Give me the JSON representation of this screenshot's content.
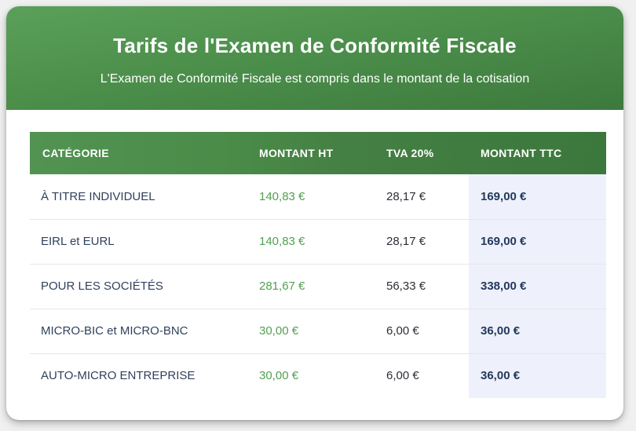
{
  "header": {
    "title": "Tarifs de l'Examen de Conformité Fiscale",
    "subtitle": "L'Examen de Conformité Fiscale est compris dans le montant de la cotisation"
  },
  "table": {
    "headers": [
      "CATÉGORIE",
      "MONTANT HT",
      "TVA 20%",
      "MONTANT TTC"
    ],
    "rows": [
      {
        "category": "À TITRE INDIVIDUEL",
        "montant_ht": "140,83 €",
        "tva": "28,17 €",
        "montant_ttc": "169,00 €"
      },
      {
        "category": "EIRL et EURL",
        "montant_ht": "140,83 €",
        "tva": "28,17 €",
        "montant_ttc": "169,00 €"
      },
      {
        "category": "POUR LES SOCIÉTÉS",
        "montant_ht": "281,67 €",
        "tva": "56,33 €",
        "montant_ttc": "338,00 €"
      },
      {
        "category": "MICRO-BIC et MICRO-BNC",
        "montant_ht": "30,00 €",
        "tva": "6,00 €",
        "montant_ttc": "36,00 €"
      },
      {
        "category": "AUTO-MICRO ENTREPRISE",
        "montant_ht": "30,00 €",
        "tva": "6,00 €",
        "montant_ttc": "36,00 €"
      }
    ]
  },
  "colors": {
    "hero_gradient_start": "#5aa05a",
    "hero_gradient_end": "#3d793d",
    "table_header_gradient_start": "#4f8f4c",
    "table_header_gradient_end": "#3c783c",
    "montant_ht_green": "#52a052",
    "montant_ttc_navy": "#23395d",
    "ttc_column_background": "#eef1fb",
    "card_background": "#ffffff",
    "page_background": "#f0f0f1"
  }
}
